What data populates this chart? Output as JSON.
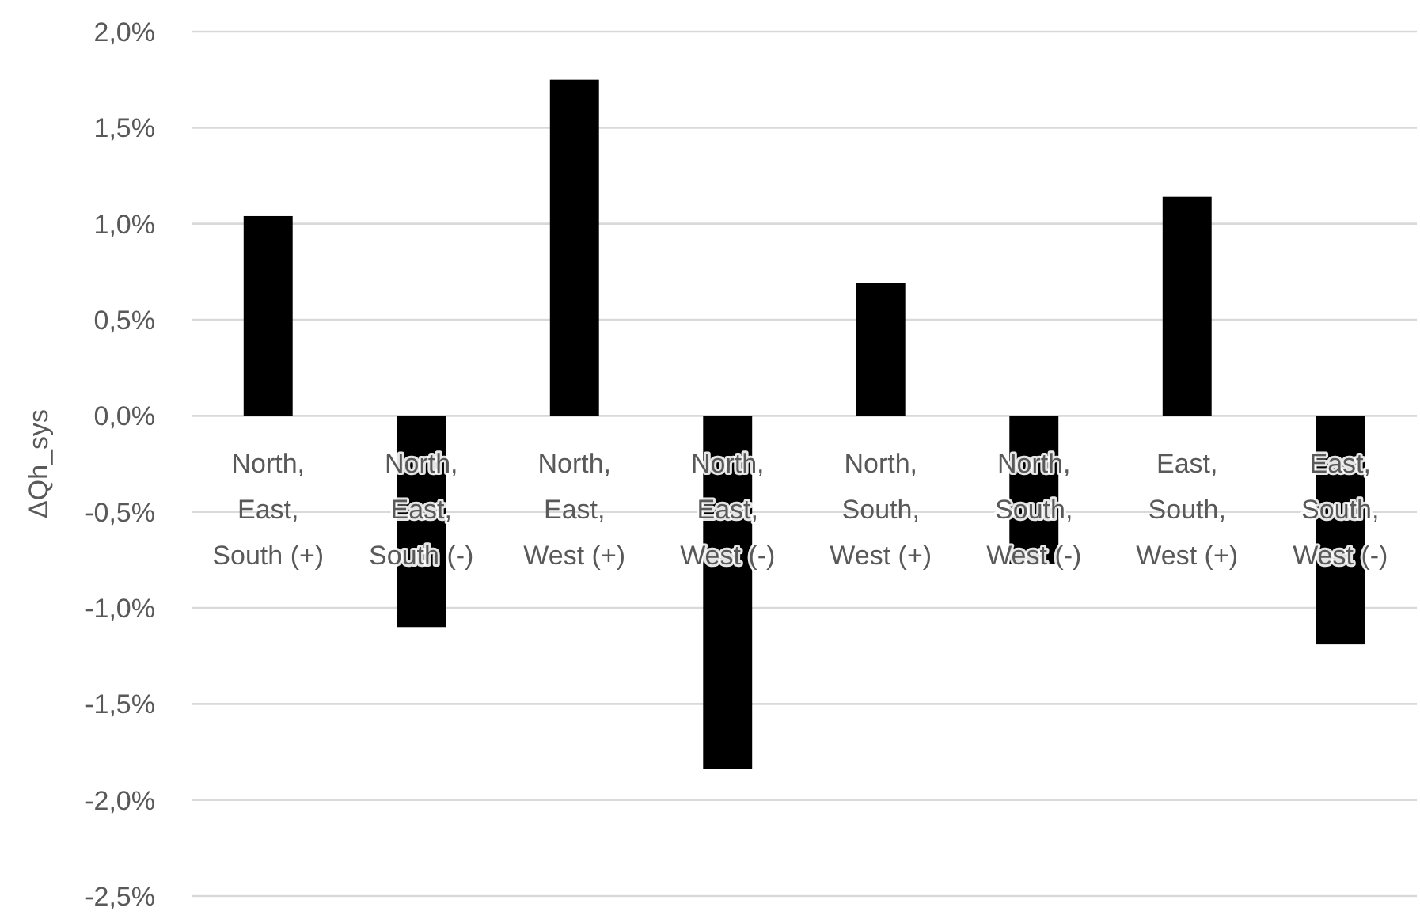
{
  "chart_data": {
    "type": "bar",
    "ylabel": "ΔQh_sys",
    "categories": [
      "North, East, South (+)",
      "North, East, South (-)",
      "North, East, West (+)",
      "North, East, West (-)",
      "North, South, West (+)",
      "North, South, West (-)",
      "East, South, West (+)",
      "East, South, West (-)"
    ],
    "values": [
      1.04,
      -1.1,
      1.75,
      -1.84,
      0.69,
      -0.77,
      1.14,
      -1.19
    ],
    "color": "#000000",
    "ylim": [
      -2.5,
      2.0
    ],
    "yticks": [
      {
        "value": -2.5,
        "label": "-2,5%"
      },
      {
        "value": -2.0,
        "label": "-2,0%"
      },
      {
        "value": -1.5,
        "label": "-1,5%"
      },
      {
        "value": -1.0,
        "label": "-1,0%"
      },
      {
        "value": -0.5,
        "label": "-0,5%"
      },
      {
        "value": 0,
        "label": "0,0%"
      },
      {
        "value": 0.5,
        "label": "0,5%"
      },
      {
        "value": 1.0,
        "label": "1,0%"
      },
      {
        "value": 1.5,
        "label": "1,5%"
      },
      {
        "value": 2.0,
        "label": "2,0%"
      }
    ],
    "grid": "y"
  }
}
